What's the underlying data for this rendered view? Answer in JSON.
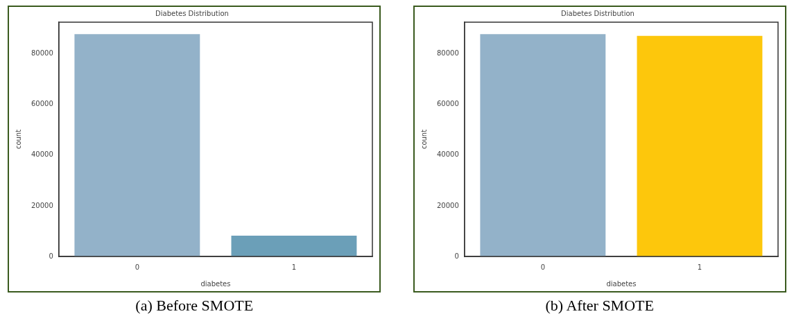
{
  "chart_data": [
    {
      "type": "bar",
      "title": "Diabetes Distribution",
      "xlabel": "diabetes",
      "ylabel": "count",
      "categories": [
        "0",
        "1"
      ],
      "values": [
        87800,
        8200
      ],
      "colors": [
        "#93b2c9",
        "#6b9fb8"
      ],
      "ylim": [
        0,
        92500
      ],
      "yticks": [
        0,
        20000,
        40000,
        60000,
        80000
      ],
      "annotations": [
        "(a) Before SMOTE"
      ]
    },
    {
      "type": "bar",
      "title": "Diabetes Distribution",
      "xlabel": "diabetes",
      "ylabel": "count",
      "categories": [
        "0",
        "1"
      ],
      "values": [
        87800,
        87100
      ],
      "colors": [
        "#93b2c9",
        "#fdc70c"
      ],
      "ylim": [
        0,
        92500
      ],
      "yticks": [
        0,
        20000,
        40000,
        60000,
        80000
      ],
      "annotations": [
        "(b) After SMOTE"
      ]
    }
  ]
}
